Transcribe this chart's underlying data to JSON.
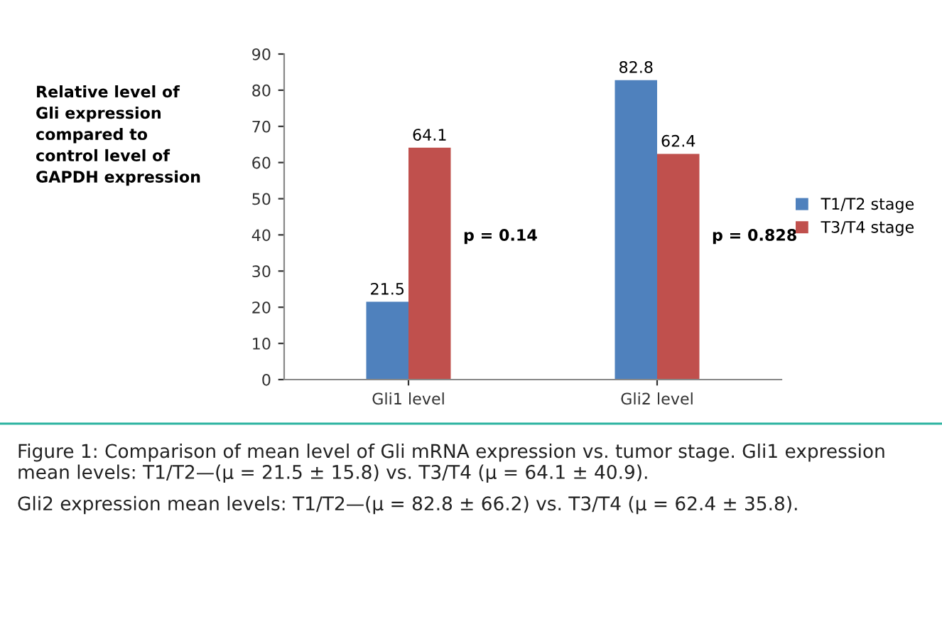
{
  "chart_data": {
    "type": "bar",
    "ylabel": "Relative level of\nGli expression\ncompared to\ncontrol level of\nGAPDH expression",
    "categories": [
      "Gli1 level",
      "Gli2 level"
    ],
    "series": [
      {
        "name": "T1/T2 stage",
        "color": "#4f81bd",
        "values": [
          21.5,
          82.8
        ]
      },
      {
        "name": "T3/T4 stage",
        "color": "#c0504d",
        "values": [
          64.1,
          62.4
        ]
      }
    ],
    "ylim": [
      0,
      90
    ],
    "yticks": [
      0,
      10,
      20,
      30,
      40,
      50,
      60,
      70,
      80,
      90
    ],
    "data_labels": true,
    "grid": false,
    "legend": "right",
    "annotations": [
      "p = 0.14",
      "p = 0.828",
      "Figure 1: Comparison of mean level of Gli mRNA expression vs. tumor stage. Gli1 expression mean levels: T1/T2—(μ = 21.5 ± 15.8) vs. T3/T4 (μ = 64.1 ± 40.9).",
      "Gli2 expression mean levels: T1/T2—(μ = 82.8 ± 66.2) vs. T3/T4 (μ = 62.4 ± 35.8)."
    ]
  }
}
